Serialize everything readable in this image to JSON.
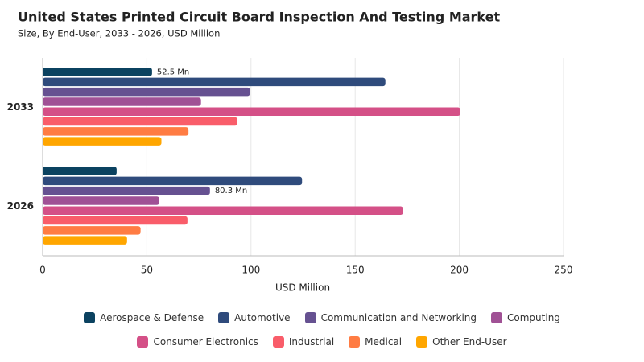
{
  "chart_data": {
    "type": "hbar",
    "title": "United States Printed Circuit Board Inspection And Testing Market",
    "subtitle": "Size, By End-User, 2033 - 2026, USD Million",
    "x_label": "USD Million",
    "categories": [
      "2033",
      "2026"
    ],
    "series": [
      {
        "name": "Aerospace & Defense",
        "color": "#0b4260",
        "values": [
          52.5,
          35.5
        ],
        "value_labels": [
          "52.5 Mn",
          null
        ]
      },
      {
        "name": "Automotive",
        "color": "#2f4b7c",
        "values": [
          164.5,
          124.5
        ]
      },
      {
        "name": "Communication and Networking",
        "color": "#665191",
        "values": [
          99.5,
          80.3
        ],
        "value_labels": [
          null,
          "80.3 Mn"
        ]
      },
      {
        "name": "Computing",
        "color": "#a05195",
        "values": [
          76,
          56
        ]
      },
      {
        "name": "Consumer Electronics",
        "color": "#d45087",
        "values": [
          200.5,
          173
        ]
      },
      {
        "name": "Industrial",
        "color": "#f95d6a",
        "values": [
          93.5,
          69.5
        ]
      },
      {
        "name": "Medical",
        "color": "#ff7c43",
        "values": [
          70,
          47
        ]
      },
      {
        "name": "Other End-User",
        "color": "#ffa600",
        "values": [
          57,
          40.5
        ]
      }
    ],
    "xlim": [
      0,
      250
    ],
    "xticks": [
      0,
      50,
      100,
      150,
      200,
      250
    ],
    "grid": true
  }
}
